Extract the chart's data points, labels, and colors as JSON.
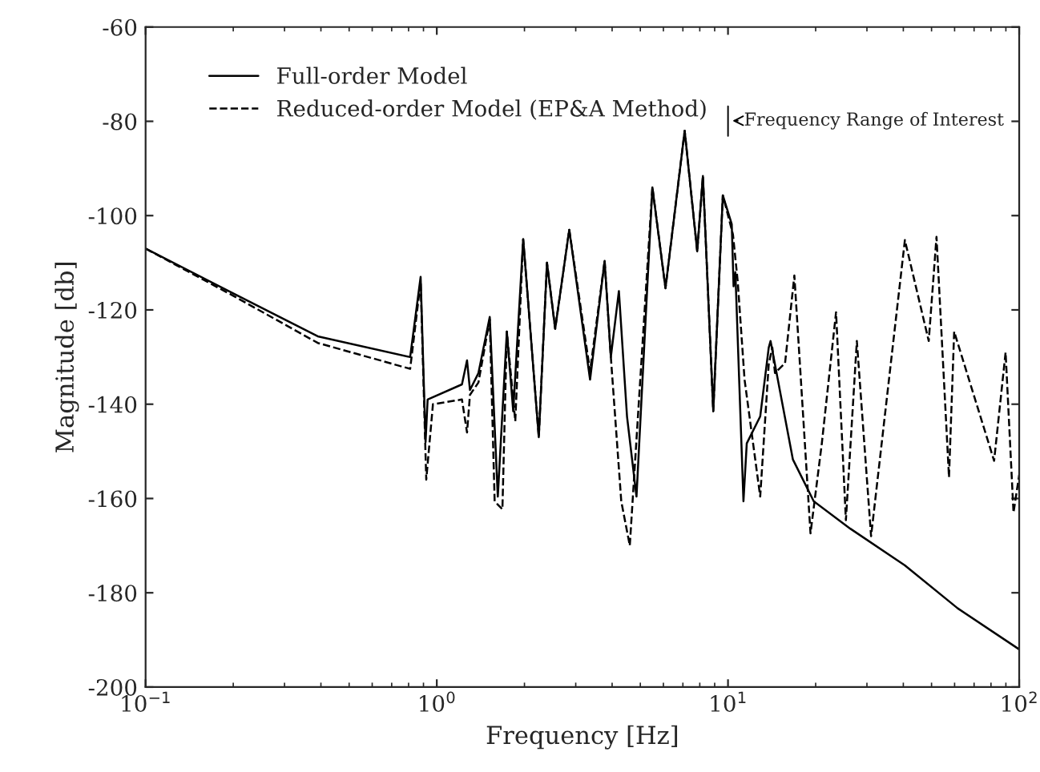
{
  "chart_data": {
    "type": "line",
    "xlabel": "Frequency [Hz]",
    "ylabel": "Magnitude [db]",
    "log": "x",
    "grid": false,
    "legend": "top left",
    "marker": "none",
    "xlim": [
      0.1,
      100
    ],
    "xticks": [
      {
        "value": 0.1,
        "label": "10$^{−1}$"
      },
      {
        "value": 1,
        "label": "10$^{0}$"
      },
      {
        "value": 10,
        "label": "10$^{1}$"
      },
      {
        "value": 100,
        "label": "10$^{2}$"
      }
    ],
    "ylim": [
      -200,
      -60
    ],
    "yticks": [
      -200,
      -180,
      -160,
      -140,
      -120,
      -100,
      -80,
      -60
    ],
    "annotations": [
      "Frequency Range of Interest"
    ],
    "series": [
      {
        "name": "Full-order Model",
        "color": "#000000",
        "line_style": "solid",
        "x": [
          0.1,
          0.2,
          0.39,
          0.81,
          0.88,
          0.915,
          0.93,
          1.22,
          1.27,
          1.3,
          1.39,
          1.52,
          1.62,
          1.74,
          1.83,
          1.98,
          2.24,
          2.39,
          2.55,
          2.85,
          3.36,
          3.77,
          3.96,
          4.22,
          4.5,
          4.85,
          5.5,
          6.1,
          7.1,
          7.84,
          8.2,
          8.9,
          9.6,
          10.3,
          10.45,
          10.6,
          11.3,
          11.6,
          12.9,
          13.8,
          14.0,
          16.7,
          19.7,
          26.3,
          40.5,
          61.5,
          100
        ],
        "values": [
          -107,
          -116.5,
          -125.6,
          -130,
          -113,
          -148,
          -139,
          -135.8,
          -130.7,
          -137,
          -133.4,
          -121.5,
          -159.6,
          -124.6,
          -141.5,
          -105,
          -147,
          -110,
          -124,
          -103,
          -134.8,
          -109.6,
          -130,
          -116,
          -142.6,
          -159.6,
          -94,
          -115.4,
          -82,
          -107.6,
          -91.6,
          -141.5,
          -95.7,
          -101.8,
          -115,
          -112,
          -160.6,
          -148.3,
          -142.6,
          -128,
          -126.6,
          -151.7,
          -160.6,
          -166.4,
          -174.2,
          -183.3,
          -192
        ]
      },
      {
        "name": "Reduced-order Model (EP&A Method)",
        "color": "#000000",
        "line_style": "dashed",
        "x": [
          0.1,
          0.2,
          0.39,
          0.81,
          0.88,
          0.92,
          0.97,
          1.22,
          1.27,
          1.3,
          1.39,
          1.52,
          1.58,
          1.68,
          1.74,
          1.86,
          1.98,
          2.24,
          2.39,
          2.55,
          2.85,
          3.36,
          3.77,
          3.96,
          4.3,
          4.6,
          5.5,
          6.1,
          7.1,
          7.84,
          8.2,
          8.9,
          9.6,
          10.4,
          10.8,
          11.4,
          12.9,
          13.8,
          14.2,
          14.5,
          15.7,
          16.9,
          19.2,
          21,
          23.5,
          25.4,
          27.7,
          31,
          40.5,
          48.9,
          52,
          57.4,
          59.8,
          82,
          89.8,
          95.6,
          100
        ],
        "values": [
          -107,
          -117,
          -127,
          -132.5,
          -114,
          -156,
          -140,
          -139,
          -146,
          -138,
          -135.4,
          -122,
          -160.6,
          -162.3,
          -124.6,
          -143.6,
          -105,
          -147,
          -110,
          -124,
          -103,
          -133,
          -109.6,
          -130,
          -160.6,
          -170,
          -94,
          -115.4,
          -82,
          -107.6,
          -91.6,
          -141.5,
          -95.7,
          -104,
          -114,
          -134.8,
          -159.6,
          -131.5,
          -128,
          -133.4,
          -131.3,
          -112.7,
          -167.4,
          -148.3,
          -120.5,
          -164.6,
          -126.6,
          -168,
          -105.2,
          -126.6,
          -104.5,
          -155.5,
          -124.6,
          -152,
          -129,
          -163,
          -155
        ]
      }
    ]
  }
}
